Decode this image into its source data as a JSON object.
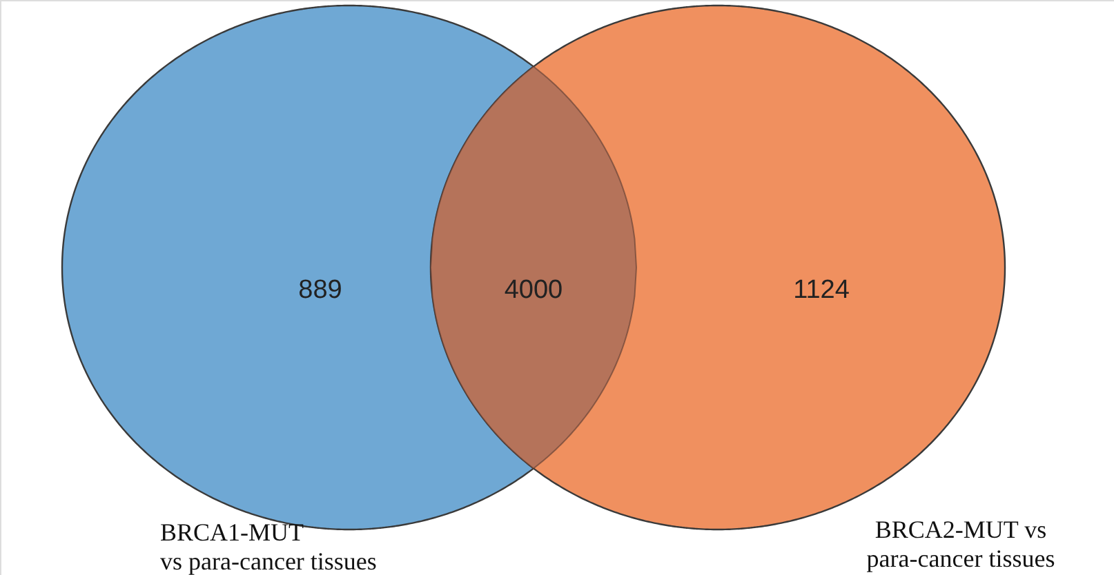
{
  "chart_data": {
    "type": "other",
    "categories": [
      "BRCA1-MUT\nvs para-cancer tissues",
      null,
      "BRCA2-MUT vs\npara-cancer tissues"
    ],
    "values": [
      889,
      4000,
      1124
    ],
    "colors": [
      "#6fa8d4",
      "#b5735a",
      "#f0905f"
    ],
    "data_labels": true
  }
}
